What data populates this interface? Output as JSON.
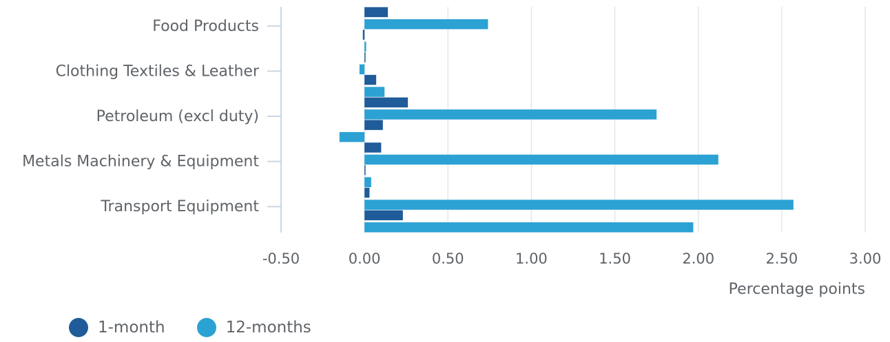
{
  "chart_data": {
    "type": "bar",
    "orientation": "horizontal",
    "xlabel": "Percentage points",
    "xlim": [
      -0.5,
      3.0
    ],
    "xticks": [
      "-0.50",
      "0.00",
      "0.50",
      "1.00",
      "1.50",
      "2.00",
      "2.50",
      "3.00"
    ],
    "xtick_values": [
      -0.5,
      0,
      0.5,
      1.0,
      1.5,
      2.0,
      2.5,
      3.0
    ],
    "grid": true,
    "legend_position": "bottom-left",
    "categories": [
      "Food Products",
      "",
      "Clothing Textiles & Leather",
      "",
      "Petroleum (excl duty)",
      "",
      "Metals Machinery & Equipment",
      "",
      "Transport Equipment",
      ""
    ],
    "series": [
      {
        "name": "1-month",
        "color": "#1f5c99",
        "values": [
          0.14,
          -0.01,
          0.0,
          0.07,
          0.26,
          0.11,
          0.1,
          0.0,
          0.03,
          0.23
        ]
      },
      {
        "name": "12-months",
        "color": "#2ca1d3",
        "values": [
          0.74,
          0.01,
          -0.03,
          0.12,
          1.75,
          -0.15,
          2.12,
          0.04,
          2.57,
          1.97
        ]
      }
    ]
  }
}
